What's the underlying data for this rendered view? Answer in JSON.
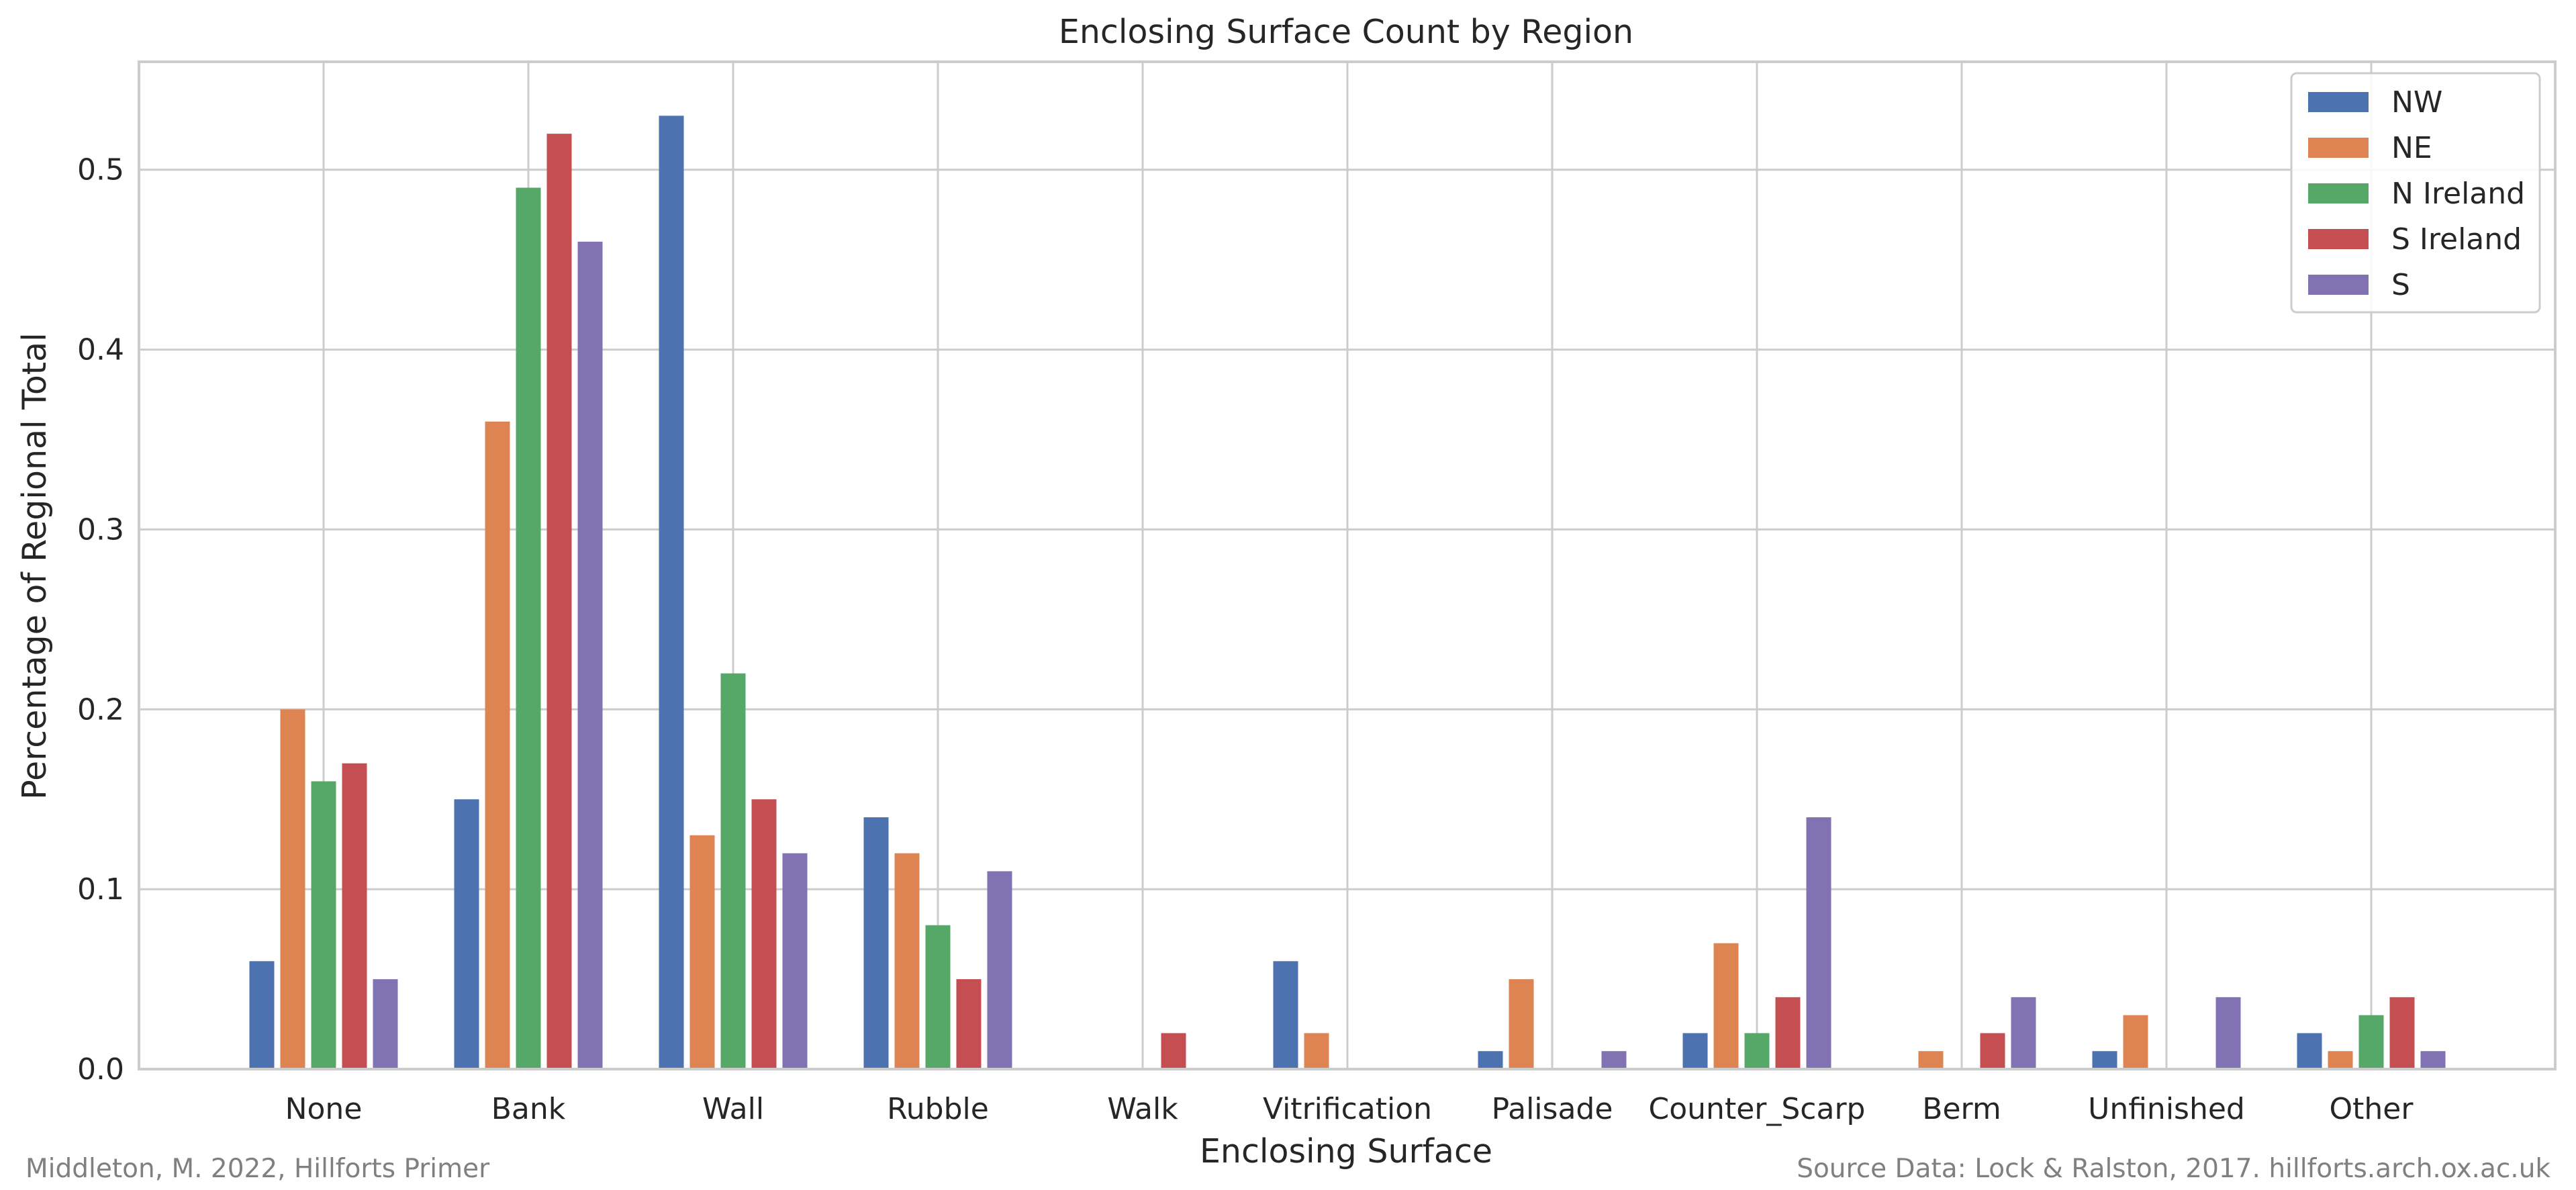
{
  "chart_data": {
    "type": "bar",
    "title": "Enclosing Surface Count by Region",
    "xlabel": "Enclosing Surface",
    "ylabel": "Percentage of Regional Total",
    "ylim": [
      0,
      0.56
    ],
    "yticks": [
      "0.0",
      "0.1",
      "0.2",
      "0.3",
      "0.4",
      "0.5"
    ],
    "grid": true,
    "legend_position": "top-right",
    "categories": [
      "None",
      "Bank",
      "Wall",
      "Rubble",
      "Walk",
      "Vitrification",
      "Palisade",
      "Counter_Scarp",
      "Berm",
      "Unfinished",
      "Other"
    ],
    "series": [
      {
        "name": "NW",
        "color": "#4c72b0",
        "values": [
          0.06,
          0.15,
          0.53,
          0.14,
          0.0,
          0.06,
          0.01,
          0.02,
          0.0,
          0.01,
          0.02
        ]
      },
      {
        "name": "NE",
        "color": "#dd8452",
        "values": [
          0.2,
          0.36,
          0.13,
          0.12,
          0.0,
          0.02,
          0.05,
          0.07,
          0.01,
          0.03,
          0.01
        ]
      },
      {
        "name": "N Ireland",
        "color": "#55a868",
        "values": [
          0.16,
          0.49,
          0.22,
          0.08,
          0.0,
          0.0,
          0.0,
          0.02,
          0.0,
          0.0,
          0.03
        ]
      },
      {
        "name": "S Ireland",
        "color": "#c44e52",
        "values": [
          0.17,
          0.52,
          0.15,
          0.05,
          0.02,
          0.0,
          0.0,
          0.04,
          0.02,
          0.0,
          0.04
        ]
      },
      {
        "name": "S",
        "color": "#8172b3",
        "values": [
          0.05,
          0.46,
          0.12,
          0.11,
          0.0,
          0.0,
          0.01,
          0.14,
          0.04,
          0.04,
          0.01
        ]
      }
    ]
  },
  "credits": {
    "left": "Middleton, M. 2022, Hillforts Primer",
    "right": "Source Data: Lock & Ralston, 2017. hillforts.arch.ox.ac.uk"
  }
}
